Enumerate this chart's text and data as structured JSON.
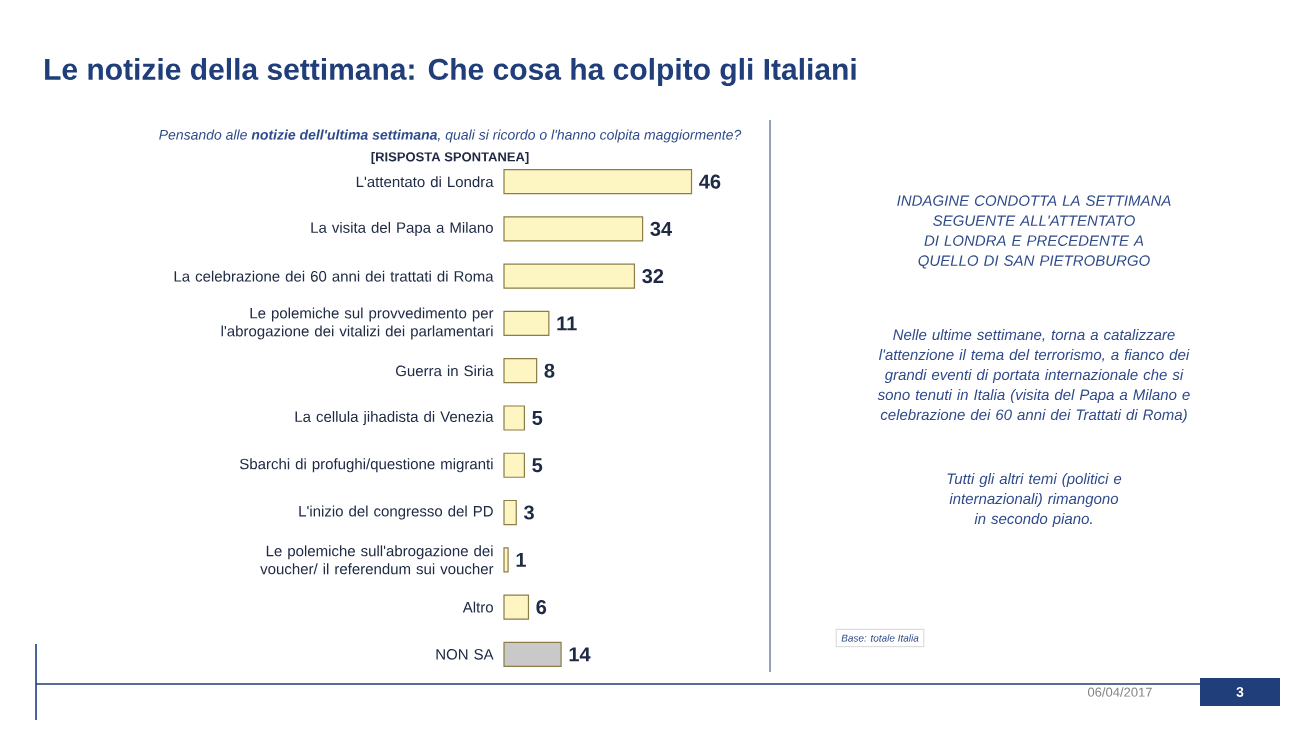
{
  "chart_data": {
    "type": "bar",
    "orientation": "horizontal",
    "data_labels": true,
    "title": "Le notizie della settimana: Che cosa ha colpito gli Italiani",
    "subtitle": "Pensando alle **notizie dell'ultima settimana**, quali si ricordo o l'hanno colpita maggiormente?",
    "categories": [
      "L'attentato di Londra",
      "La visita del Papa a Milano",
      "La celebrazione dei 60 anni dei trattati di Roma",
      "Le polemiche sul provvedimento per l'abrogazione dei vitalizi dei parlamentari",
      "Guerra in Siria",
      "La cellula jihadista di Venezia",
      "Sbarchi di profughi/questione migranti",
      "L'inizio del congresso del PD",
      "Le polemiche sull'abrogazione dei voucher/ il referendum sui voucher",
      "Altro",
      "NON SA"
    ],
    "values": [
      46,
      34,
      32,
      11,
      8,
      5,
      5,
      3,
      1,
      6,
      14
    ],
    "colors": [
      "#fdf6c3",
      "#fdf6c3",
      "#fdf6c3",
      "#fdf6c3",
      "#fdf6c3",
      "#fdf6c3",
      "#fdf6c3",
      "#fdf6c3",
      "#fdf6c3",
      "#fdf6c3",
      "#c9c9c9"
    ],
    "annotations": [
      "[RISPOSTA SPONTANEA]",
      "INDAGINE CONDOTTA LA SETTIMANA SEGUENTE ALL'ATTENTATO DI LONDRA E PRECEDENTE A QUELLO DI SAN PIETROBURGO",
      "Nelle ultime settimane, torna a catalizzare l'attenzione il tema del terrorismo, a fianco dei grandi eventi di portata internazionale che si sono tenuti in Italia (visita del Papa a Milano e celebrazione dei 60 anni dei Trattati di Roma)",
      "Tutti gli altri temi (politici e internazionali) rimangono in secondo piano.",
      "Base: totale Italia",
      "06/04/2017",
      "3"
    ]
  }
}
